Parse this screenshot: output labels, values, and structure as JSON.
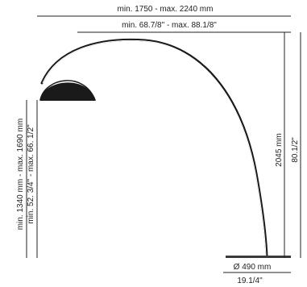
{
  "dimensions": {
    "top_mm": "min. 1750 - max. 2240 mm",
    "top_in": "min. 68.7/8\" - max. 88.1/8\"",
    "left_mm": "min. 1340 mm - max. 1690 mm",
    "left_in": "min. 52. 3/4\" - max. 66. 1/2\"",
    "right_mm": "2045 mm",
    "right_in": "80.1/2\"",
    "base_mm": "Ø 490 mm",
    "base_in": "19.1/4\""
  }
}
